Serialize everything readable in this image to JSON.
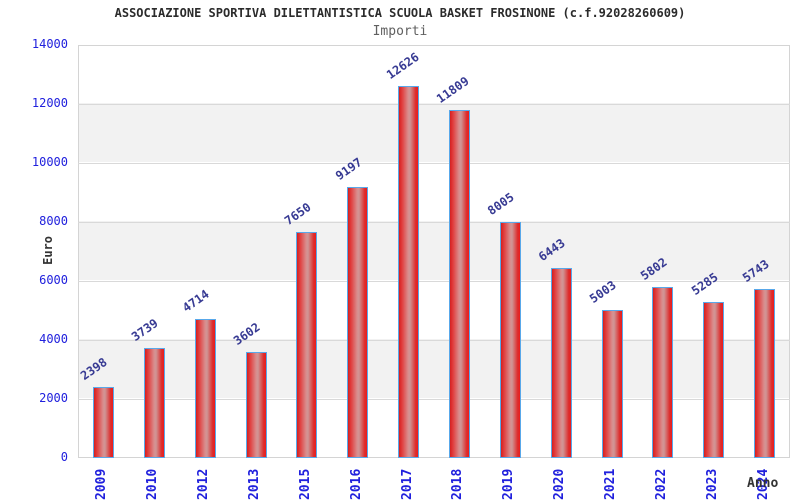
{
  "header": {
    "title": "ASSOCIAZIONE SPORTIVA DILETTANTISTICA SCUOLA BASKET FROSINONE (c.f.92028260609)",
    "subtitle": "Importi"
  },
  "colors": {
    "bar_fill_edge": "#d42020",
    "bar_fill_mid": "#cf9595",
    "bar_border": "#58a8ea",
    "tick_label": "#2020dd",
    "value_label": "#373a93",
    "band_alt": "#f2f2f2",
    "grid_line": "#d9d9d9",
    "plot_border": "#d4d4d4",
    "title_color": "#2b2b2b",
    "subtitle_color": "#606060",
    "axis_title_color": "#333333",
    "background": "#ffffff"
  },
  "chart_data": {
    "type": "bar",
    "title": "ASSOCIAZIONE SPORTIVA DILETTANTISTICA SCUOLA BASKET FROSINONE (c.f.92028260609)",
    "subtitle": "Importi",
    "xlabel": "Anno",
    "ylabel": "Euro",
    "categories": [
      "2009",
      "2010",
      "2012",
      "2013",
      "2015",
      "2016",
      "2017",
      "2018",
      "2019",
      "2020",
      "2021",
      "2022",
      "2023",
      "2024"
    ],
    "values": [
      2398,
      3739,
      4714,
      3602,
      7650,
      9197,
      12626,
      11809,
      8005,
      6443,
      5003,
      5802,
      5285,
      5743
    ],
    "ylim": [
      0,
      14000
    ],
    "yticks": [
      0,
      2000,
      4000,
      6000,
      8000,
      10000,
      12000,
      14000
    ],
    "grid": "horizontal gridlines with alternating background bands",
    "legend": "none",
    "value_label_style": "rotated, above each bar"
  }
}
